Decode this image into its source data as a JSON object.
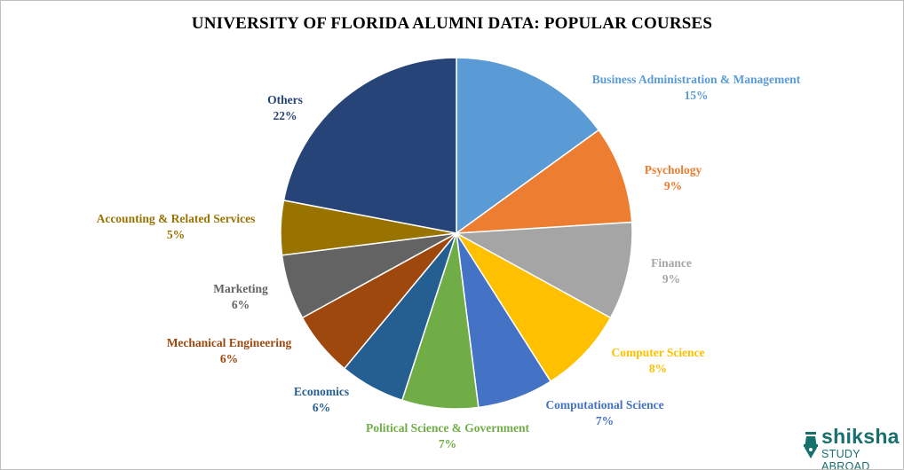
{
  "chart_data": {
    "type": "pie",
    "title": "UNIVERSITY  OF FLORIDA ALUMNI DATA:  POPULAR COURSES",
    "start": "top, clockwise",
    "slices": [
      {
        "label": "Business Administration  & Management",
        "value": 15,
        "pct": "15%",
        "color": "#5B9BD5"
      },
      {
        "label": "Psychology",
        "value": 9,
        "pct": "9%",
        "color": "#ED7D31"
      },
      {
        "label": "Finance",
        "value": 9,
        "pct": "9%",
        "color": "#A5A5A5"
      },
      {
        "label": "Computer  Science",
        "value": 8,
        "pct": "8%",
        "color": "#FFC000"
      },
      {
        "label": "Computational  Science",
        "value": 7,
        "pct": "7%",
        "color": "#4472C4"
      },
      {
        "label": "Political  Science & Government",
        "value": 7,
        "pct": "7%",
        "color": "#70AD47"
      },
      {
        "label": "Economics",
        "value": 6,
        "pct": "6%",
        "color": "#255E91"
      },
      {
        "label": "Mechanical Engineering",
        "value": 6,
        "pct": "6%",
        "color": "#9E480E"
      },
      {
        "label": "Marketing",
        "value": 6,
        "pct": "6%",
        "color": "#636363"
      },
      {
        "label": "Accounting  & Related Services",
        "value": 5,
        "pct": "5%",
        "color": "#997300"
      },
      {
        "label": "Others",
        "value": 22,
        "pct": "22%",
        "color": "#264478"
      }
    ]
  },
  "logo": {
    "name": "shiksha",
    "tagline": "STUDY ABROAD",
    "color": "#17706E"
  }
}
